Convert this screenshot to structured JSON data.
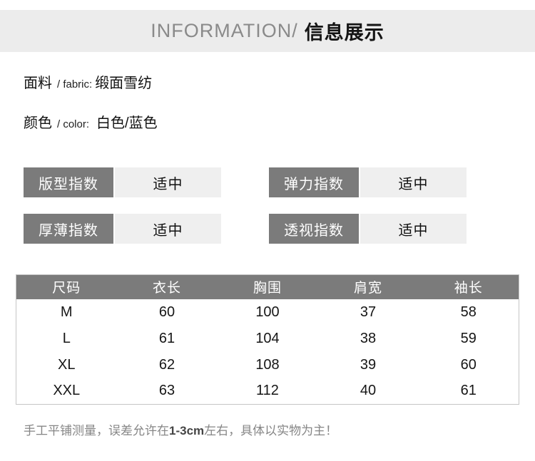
{
  "header": {
    "en": "INFORMATION/",
    "cn": "信息展示"
  },
  "attributes": [
    {
      "label_cn": "面料",
      "label_en": "/ fabric:",
      "value": "缎面雪纺"
    },
    {
      "label_cn": "颜色",
      "label_en": "/ color:",
      "value": "白色/蓝色"
    }
  ],
  "indices": [
    {
      "label": "版型指数",
      "value": "适中"
    },
    {
      "label": "弹力指数",
      "value": "适中"
    },
    {
      "label": "厚薄指数",
      "value": "适中"
    },
    {
      "label": "透视指数",
      "value": "适中"
    }
  ],
  "size_table": {
    "headers": [
      "尺码",
      "衣长",
      "胸围",
      "肩宽",
      "袖长"
    ],
    "rows": [
      [
        "M",
        "60",
        "100",
        "37",
        "58"
      ],
      [
        "L",
        "61",
        "104",
        "38",
        "59"
      ],
      [
        "XL",
        "62",
        "108",
        "39",
        "60"
      ],
      [
        "XXL",
        "63",
        "112",
        "40",
        "61"
      ]
    ]
  },
  "footer": {
    "prefix": "手工平铺测量，误差允许在",
    "highlight": "1-3cm",
    "suffix": "左右，具体以实物为主！"
  },
  "colors": {
    "accent_dark_gray": "#7b7b7b",
    "header_bar_bg": "#ececec",
    "value_box_bg": "#efefef",
    "table_border": "#c5c5c5",
    "footer_text": "#868686"
  }
}
